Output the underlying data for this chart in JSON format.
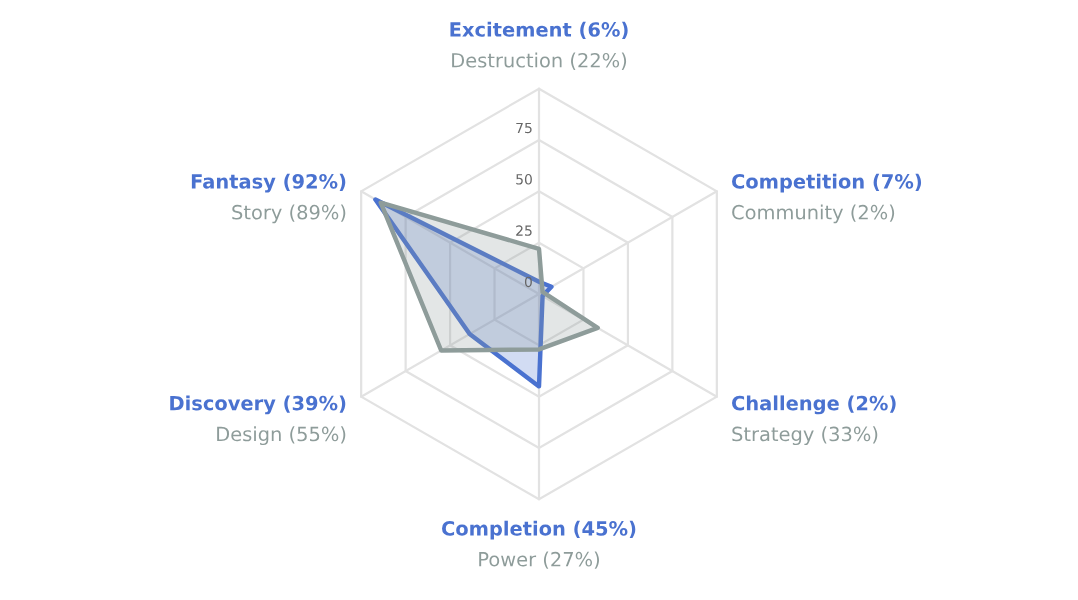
{
  "chart_data": {
    "type": "radar",
    "categories": [
      "Excitement (6%)\nDestruction (22%)",
      "Competition (7%)\nCommunity (2%)",
      "Challenge (2%)\nStrategy (33%)",
      "Completion (45%)\nPower (27%)",
      "Discovery (39%)\nDesign (55%)",
      "Fantasy (92%)\nStory (89%)"
    ],
    "series": [
      {
        "color": "#4a72d0",
        "values": [
          6,
          7,
          2,
          45,
          39,
          92
        ]
      },
      {
        "color": "#8e9c9a",
        "values": [
          22,
          2,
          33,
          27,
          55,
          89
        ]
      }
    ],
    "ylim": [
      0,
      100
    ],
    "yticks": [
      0,
      25,
      50,
      75
    ],
    "grid": true
  }
}
